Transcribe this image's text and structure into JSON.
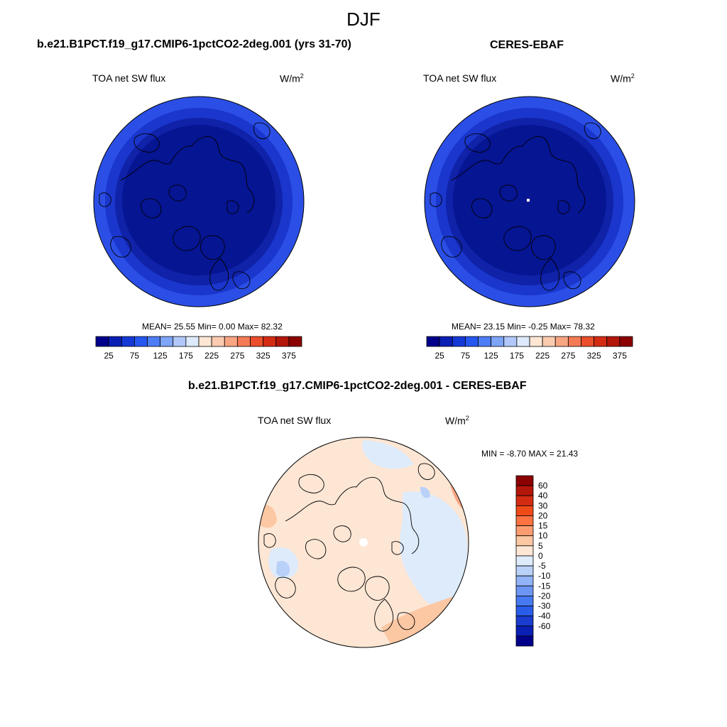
{
  "title": "DJF",
  "left_panel": {
    "title": "b.e21.B1PCT.f19_g17.CMIP6-1pctCO2-2deg.001 (yrs 31-70)",
    "variable": "TOA net SW flux",
    "units_base": "W/m",
    "units_exp": "2",
    "stats": "MEAN=  25.55  Min=   0.00  Max=  82.32"
  },
  "right_panel": {
    "title": "CERES-EBAF",
    "variable": "TOA net SW flux",
    "units_base": "W/m",
    "units_exp": "2",
    "stats": "MEAN=  23.15  Min=  -0.25  Max=  78.32"
  },
  "diff_panel": {
    "title": "b.e21.B1PCT.f19_g17.CMIP6-1pctCO2-2deg.001 - CERES-EBAF",
    "variable": "TOA net SW flux",
    "units_base": "W/m",
    "units_exp": "2",
    "stats": "MIN =  -8.70 MAX =  21.43"
  },
  "top_colorbar": {
    "colors": [
      "#00008b",
      "#0a1fb4",
      "#1438d6",
      "#2556f0",
      "#4d7df5",
      "#7ea5f8",
      "#b2c8fb",
      "#ddeafd",
      "#fde6d4",
      "#fbcbb0",
      "#f8a582",
      "#f47a55",
      "#ea4e2c",
      "#d42c13",
      "#b3160a",
      "#8b0000"
    ],
    "tick_labels": [
      "25",
      "75",
      "125",
      "175",
      "225",
      "275",
      "325",
      "375"
    ]
  },
  "diff_colorbar": {
    "colors": [
      "#8b0000",
      "#b3160a",
      "#d42c13",
      "#f04a18",
      "#fa7341",
      "#fb9d70",
      "#fcc7a3",
      "#fde6d4",
      "#deebfb",
      "#b9d0f8",
      "#92b3f6",
      "#6d96f4",
      "#4779f1",
      "#2a5ce8",
      "#1a3ccf",
      "#0a1fb4",
      "#00008b"
    ],
    "tick_labels": [
      "60",
      "40",
      "30",
      "20",
      "15",
      "10",
      "5",
      "0",
      "-5",
      "-10",
      "-15",
      "-20",
      "-30",
      "-40",
      "-60"
    ]
  },
  "map_colors": {
    "ring_outer": "#2b4fe6",
    "ring_mid": "#1a36cc",
    "ring_inner": "#0f22a8",
    "core": "#061592",
    "diff_base": "#fde6d4",
    "diff_neg": "#deebfb",
    "diff_neg2": "#b9d0f8",
    "diff_pos": "#fcc7a3",
    "diff_pos2": "#f8a582"
  }
}
